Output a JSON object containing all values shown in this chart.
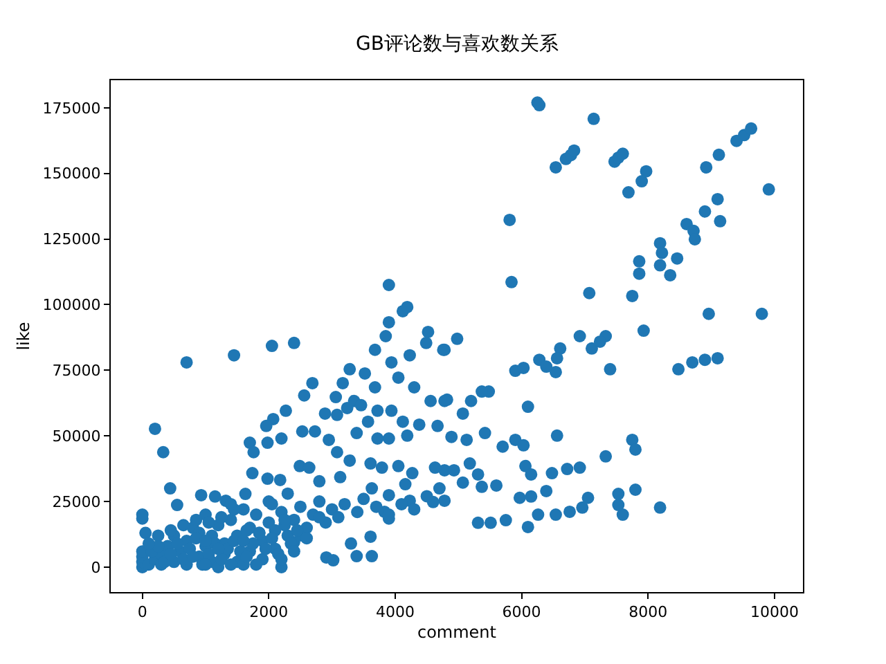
{
  "chart_data": {
    "type": "scatter",
    "title": "GB评论数与喜欢数关系",
    "xlabel": "comment",
    "ylabel": "like",
    "xlim": [
      -500,
      10450
    ],
    "ylim": [
      -9500,
      185500
    ],
    "xticks": [
      0,
      2000,
      4000,
      6000,
      8000,
      10000
    ],
    "yticks": [
      0,
      25000,
      50000,
      75000,
      100000,
      125000,
      150000,
      175000
    ],
    "marker": "circle",
    "series": [
      {
        "color": "#1f77b4",
        "x": [
          6250,
          6280,
          7140,
          6540,
          6700,
          6780,
          6830,
          7470,
          7530,
          7600,
          7690,
          7900,
          7970,
          5810,
          5840,
          7070,
          7750,
          7930,
          7860,
          7860,
          8190,
          8220,
          8190,
          8460,
          8350,
          8610,
          8720,
          8740,
          8900,
          9100,
          9140,
          8920,
          9120,
          9400,
          9520,
          9630,
          9910,
          8960,
          9800,
          8480,
          8700,
          8900,
          9100,
          6920,
          7110,
          7330,
          7240,
          7400,
          6610,
          6560,
          6280,
          6540,
          6390,
          5900,
          6030,
          4980,
          4780,
          5480,
          5370,
          5200,
          5070,
          4820,
          6100,
          6560,
          5900,
          6030,
          5700,
          5420,
          5130,
          4890,
          7750,
          7800,
          7330,
          6920,
          6720,
          6480,
          6060,
          6150,
          5180,
          4780,
          5070,
          5310,
          5370,
          5600,
          5970,
          6150,
          6390,
          7050,
          7800,
          7530,
          7600,
          7530,
          8190,
          5310,
          5510,
          5750,
          6100,
          6260,
          6540,
          6760,
          6960,
          4780,
          3900,
          4120,
          4190,
          3900,
          3850,
          3680,
          4520,
          4490,
          4760,
          4230,
          3940,
          3520,
          3280,
          3170,
          2690,
          2560,
          3060,
          3350,
          3680,
          4050,
          4300,
          4560,
          4780,
          700,
          1450,
          2050,
          2400,
          200,
          330,
          2070,
          1960,
          2270,
          1700,
          1760,
          1980,
          2200,
          2530,
          2730,
          2890,
          3080,
          3240,
          3460,
          2950,
          3080,
          3390,
          3570,
          3720,
          3940,
          4120,
          4190,
          3900,
          3720,
          4380,
          4670,
          1740,
          2490,
          2640,
          2800,
          3130,
          3280,
          3610,
          3790,
          4050,
          4270,
          4630,
          4930,
          4160,
          4230,
          4600,
          3900,
          3630,
          440,
          0,
          0,
          930,
          1150,
          1320,
          1630,
          1980,
          2180,
          550,
          3300,
          3610,
          3390,
          3630,
          2910,
          3020,
          2400,
          2510,
          3830,
          3900,
          0,
          0,
          0,
          0,
          100,
          200,
          300,
          300,
          400,
          500,
          500,
          600,
          700,
          700,
          800,
          900,
          900,
          1000,
          1000,
          1100,
          1100,
          1200,
          1300,
          1300,
          1400,
          1500,
          1500,
          1600,
          1700,
          1700,
          1800,
          1900,
          1900,
          2000,
          2000,
          2100,
          2100,
          2200,
          2300,
          2300,
          2400,
          2500,
          2600,
          2700,
          2800,
          2900,
          3000,
          3100,
          3200,
          3400,
          3500,
          3700,
          3900,
          4100,
          4300,
          4500,
          4700,
          1200,
          1600,
          2200,
          150,
          250,
          350,
          450,
          550,
          650,
          750,
          850,
          950,
          1050,
          1150,
          1250,
          1350,
          1450,
          1550,
          1650,
          1750,
          1850,
          1950,
          2050,
          2150,
          2250,
          2350,
          250,
          450,
          650,
          850,
          1050,
          1250,
          1450,
          1650,
          1850,
          2050,
          2250,
          2450,
          800,
          1000,
          1200,
          1400,
          1600,
          1800,
          2200,
          2400,
          2600,
          2800,
          50,
          100,
          1000,
          1400
        ],
        "values": [
          177000,
          176000,
          170800,
          152300,
          155500,
          157000,
          158700,
          154500,
          156000,
          157500,
          142800,
          147000,
          150800,
          132300,
          108600,
          104400,
          103300,
          90100,
          116500,
          111800,
          123400,
          119700,
          115000,
          117600,
          111200,
          130700,
          128100,
          124900,
          135500,
          140200,
          131800,
          152300,
          157100,
          162400,
          164600,
          167100,
          143900,
          96500,
          96500,
          75400,
          78000,
          79000,
          79600,
          88000,
          83300,
          88000,
          85900,
          75400,
          83300,
          79600,
          79000,
          74300,
          76400,
          74800,
          75900,
          87000,
          82800,
          66900,
          66900,
          63300,
          58500,
          63800,
          61100,
          50100,
          48500,
          46400,
          45900,
          51100,
          48500,
          49600,
          48500,
          44800,
          42200,
          37900,
          37400,
          35800,
          38500,
          35300,
          39500,
          36900,
          32200,
          35300,
          30600,
          31100,
          26400,
          26900,
          29000,
          26400,
          29500,
          27900,
          20000,
          23700,
          22700,
          16900,
          16900,
          17900,
          15300,
          20000,
          20000,
          21100,
          22700,
          25300,
          107500,
          97500,
          99100,
          93300,
          88000,
          82800,
          89600,
          85400,
          82800,
          80700,
          78000,
          73800,
          75400,
          70100,
          70100,
          65400,
          64800,
          63300,
          68500,
          72200,
          68500,
          63300,
          63300,
          78000,
          80700,
          84300,
          85400,
          52700,
          43800,
          56400,
          53800,
          59600,
          47400,
          43800,
          47400,
          49000,
          51700,
          51700,
          58500,
          58000,
          60600,
          61700,
          48500,
          43800,
          51100,
          55400,
          59600,
          59600,
          55400,
          50100,
          49000,
          49000,
          54300,
          53800,
          35800,
          38500,
          37900,
          32700,
          34300,
          40600,
          39500,
          37900,
          38500,
          35800,
          37900,
          36900,
          31600,
          25300,
          24800,
          27400,
          30000,
          30000,
          18500,
          20000,
          27400,
          26900,
          25300,
          27900,
          33700,
          33200,
          23700,
          9000,
          11600,
          4200,
          4200,
          3700,
          2600,
          9500,
          12100,
          21100,
          18500,
          0,
          2000,
          4000,
          6000,
          1000,
          3000,
          5000,
          1000,
          8000,
          2000,
          12000,
          6000,
          10000,
          1000,
          15000,
          4000,
          13000,
          8000,
          20000,
          2000,
          12000,
          16000,
          5000,
          9000,
          18000,
          2000,
          12000,
          22000,
          6000,
          15000,
          20000,
          3000,
          10000,
          17000,
          25000,
          7000,
          14000,
          21000,
          12000,
          28000,
          18000,
          23000,
          15000,
          20000,
          25000,
          17000,
          22000,
          19000,
          24000,
          21000,
          26000,
          23000,
          20000,
          24000,
          22000,
          27000,
          30000,
          0,
          1000,
          0,
          6000,
          8000,
          2000,
          5000,
          9000,
          3000,
          7000,
          11000,
          1000,
          5000,
          9000,
          3000,
          7000,
          10000,
          6000,
          4000,
          9000,
          13000,
          7000,
          11000,
          5000,
          16000,
          9000,
          12000,
          14000,
          16000,
          18000,
          17000,
          19000,
          22000,
          14000,
          13000,
          24000,
          18000,
          14000,
          4000,
          1000,
          7000,
          1000,
          10000,
          1000,
          3000,
          6000,
          11000,
          19000,
          13000,
          9000,
          10000,
          24000
        ]
      }
    ]
  }
}
